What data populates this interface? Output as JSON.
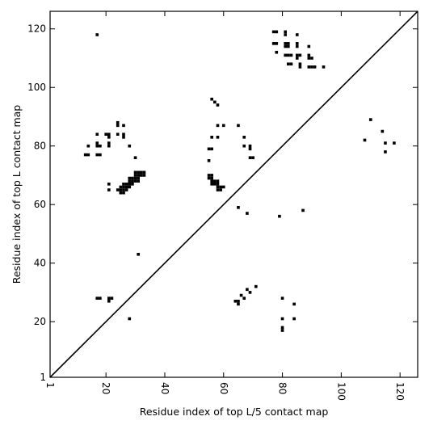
{
  "chart_data": {
    "type": "scatter",
    "title": "",
    "xlabel": "Residue index of top L/5 contact map",
    "ylabel": "Residue index of top L contact map",
    "xlim": [
      1,
      126
    ],
    "ylim": [
      1,
      126
    ],
    "xticks": [
      {
        "value": 1,
        "label": "1"
      },
      {
        "value": 20,
        "label": "20"
      },
      {
        "value": 40,
        "label": "40"
      },
      {
        "value": 60,
        "label": "60"
      },
      {
        "value": 80,
        "label": "80"
      },
      {
        "value": 100,
        "label": "100"
      },
      {
        "value": 120,
        "label": "120"
      }
    ],
    "yticks": [
      {
        "value": 1,
        "label": "1"
      },
      {
        "value": 20,
        "label": "20"
      },
      {
        "value": 40,
        "label": "40"
      },
      {
        "value": 60,
        "label": "60"
      },
      {
        "value": 80,
        "label": "80"
      },
      {
        "value": 100,
        "label": "100"
      },
      {
        "value": 120,
        "label": "120"
      }
    ],
    "grid": false,
    "xtick_rotation": 90,
    "diagonal": {
      "from": [
        1,
        1
      ],
      "to": [
        126,
        126
      ],
      "color": "#000000"
    },
    "marker_color": "#000000",
    "points": [
      [
        17,
        118
      ],
      [
        77,
        119
      ],
      [
        78,
        119
      ],
      [
        81,
        119
      ],
      [
        81,
        118
      ],
      [
        85,
        118
      ],
      [
        77,
        115
      ],
      [
        78,
        115
      ],
      [
        81,
        115
      ],
      [
        82,
        115
      ],
      [
        85,
        115
      ],
      [
        89,
        114
      ],
      [
        85,
        114
      ],
      [
        81,
        114
      ],
      [
        82,
        114
      ],
      [
        78,
        112
      ],
      [
        81,
        111
      ],
      [
        82,
        111
      ],
      [
        83,
        111
      ],
      [
        85,
        111
      ],
      [
        86,
        111
      ],
      [
        85,
        110
      ],
      [
        89,
        111
      ],
      [
        89,
        110
      ],
      [
        90,
        110
      ],
      [
        82,
        108
      ],
      [
        83,
        108
      ],
      [
        86,
        108
      ],
      [
        86,
        107
      ],
      [
        89,
        107
      ],
      [
        90,
        107
      ],
      [
        91,
        107
      ],
      [
        94,
        107
      ],
      [
        56,
        96
      ],
      [
        57,
        95
      ],
      [
        58,
        94
      ],
      [
        24,
        88
      ],
      [
        24,
        87
      ],
      [
        26,
        87
      ],
      [
        58,
        87
      ],
      [
        60,
        87
      ],
      [
        65,
        87
      ],
      [
        17,
        84
      ],
      [
        20,
        84
      ],
      [
        21,
        84
      ],
      [
        21,
        83
      ],
      [
        24,
        84
      ],
      [
        26,
        84
      ],
      [
        26,
        83
      ],
      [
        14,
        80
      ],
      [
        17,
        81
      ],
      [
        17,
        80
      ],
      [
        18,
        80
      ],
      [
        21,
        81
      ],
      [
        21,
        80
      ],
      [
        28,
        80
      ],
      [
        13,
        77
      ],
      [
        14,
        77
      ],
      [
        17,
        77
      ],
      [
        18,
        77
      ],
      [
        30,
        76
      ],
      [
        56,
        83
      ],
      [
        58,
        83
      ],
      [
        67,
        83
      ],
      [
        55,
        79
      ],
      [
        56,
        79
      ],
      [
        67,
        80
      ],
      [
        69,
        80
      ],
      [
        69,
        79
      ],
      [
        69,
        76
      ],
      [
        70,
        76
      ],
      [
        55,
        75
      ],
      [
        55,
        70
      ],
      [
        56,
        70
      ],
      [
        55,
        69
      ],
      [
        56,
        69
      ],
      [
        56,
        68
      ],
      [
        57,
        68
      ],
      [
        58,
        68
      ],
      [
        57,
        67
      ],
      [
        56,
        67
      ],
      [
        58,
        67
      ],
      [
        58,
        66
      ],
      [
        59,
        66
      ],
      [
        59,
        65
      ],
      [
        58,
        65
      ],
      [
        60,
        66
      ],
      [
        30,
        71
      ],
      [
        31,
        71
      ],
      [
        32,
        71
      ],
      [
        33,
        71
      ],
      [
        30,
        70
      ],
      [
        31,
        70
      ],
      [
        32,
        70
      ],
      [
        33,
        70
      ],
      [
        28,
        69
      ],
      [
        29,
        69
      ],
      [
        30,
        69
      ],
      [
        31,
        69
      ],
      [
        28,
        68
      ],
      [
        29,
        68
      ],
      [
        30,
        68
      ],
      [
        31,
        68
      ],
      [
        26,
        67
      ],
      [
        27,
        67
      ],
      [
        28,
        67
      ],
      [
        29,
        67
      ],
      [
        25,
        66
      ],
      [
        26,
        66
      ],
      [
        27,
        66
      ],
      [
        28,
        66
      ],
      [
        24,
        65
      ],
      [
        25,
        65
      ],
      [
        26,
        65
      ],
      [
        27,
        65
      ],
      [
        25,
        64
      ],
      [
        26,
        64
      ],
      [
        21,
        67
      ],
      [
        21,
        65
      ],
      [
        65,
        59
      ],
      [
        68,
        57
      ],
      [
        79,
        56
      ],
      [
        87,
        58
      ],
      [
        31,
        43
      ],
      [
        17,
        28
      ],
      [
        18,
        28
      ],
      [
        21,
        28
      ],
      [
        22,
        28
      ],
      [
        21,
        27
      ],
      [
        71,
        32
      ],
      [
        68,
        31
      ],
      [
        69,
        30
      ],
      [
        66,
        29
      ],
      [
        67,
        28
      ],
      [
        64,
        27
      ],
      [
        65,
        27
      ],
      [
        65,
        26
      ],
      [
        80,
        28
      ],
      [
        84,
        26
      ],
      [
        28,
        21
      ],
      [
        80,
        21
      ],
      [
        84,
        21
      ],
      [
        80,
        18
      ],
      [
        80,
        17
      ],
      [
        110,
        89
      ],
      [
        114,
        85
      ],
      [
        108,
        82
      ],
      [
        115,
        81
      ],
      [
        118,
        81
      ],
      [
        115,
        78
      ]
    ]
  }
}
